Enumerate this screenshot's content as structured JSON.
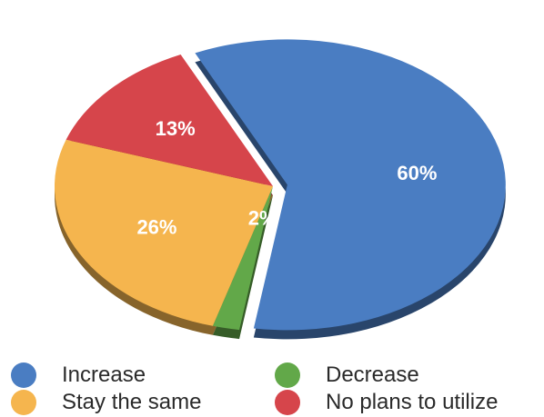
{
  "chart_data": {
    "type": "pie",
    "title": "",
    "slices": [
      {
        "label": "Increase",
        "value": 60,
        "value_label": "60%",
        "color": "#4a7dc2"
      },
      {
        "label": "Decrease",
        "value": 2,
        "value_label": "2%",
        "color": "#62a849"
      },
      {
        "label": "Stay the same",
        "value": 26,
        "value_label": "26%",
        "color": "#f5b54e"
      },
      {
        "label": "No plans to utilize",
        "value": 13,
        "value_label": "13%",
        "color": "#d6454b"
      }
    ],
    "legend": {
      "placement": "bottom",
      "items": [
        {
          "label": "Increase",
          "color": "#4a7dc2"
        },
        {
          "label": "Decrease",
          "color": "#62a849"
        },
        {
          "label": "Stay the same",
          "color": "#f5b54e"
        },
        {
          "label": "No plans to utilize",
          "color": "#d6454b"
        }
      ]
    }
  }
}
